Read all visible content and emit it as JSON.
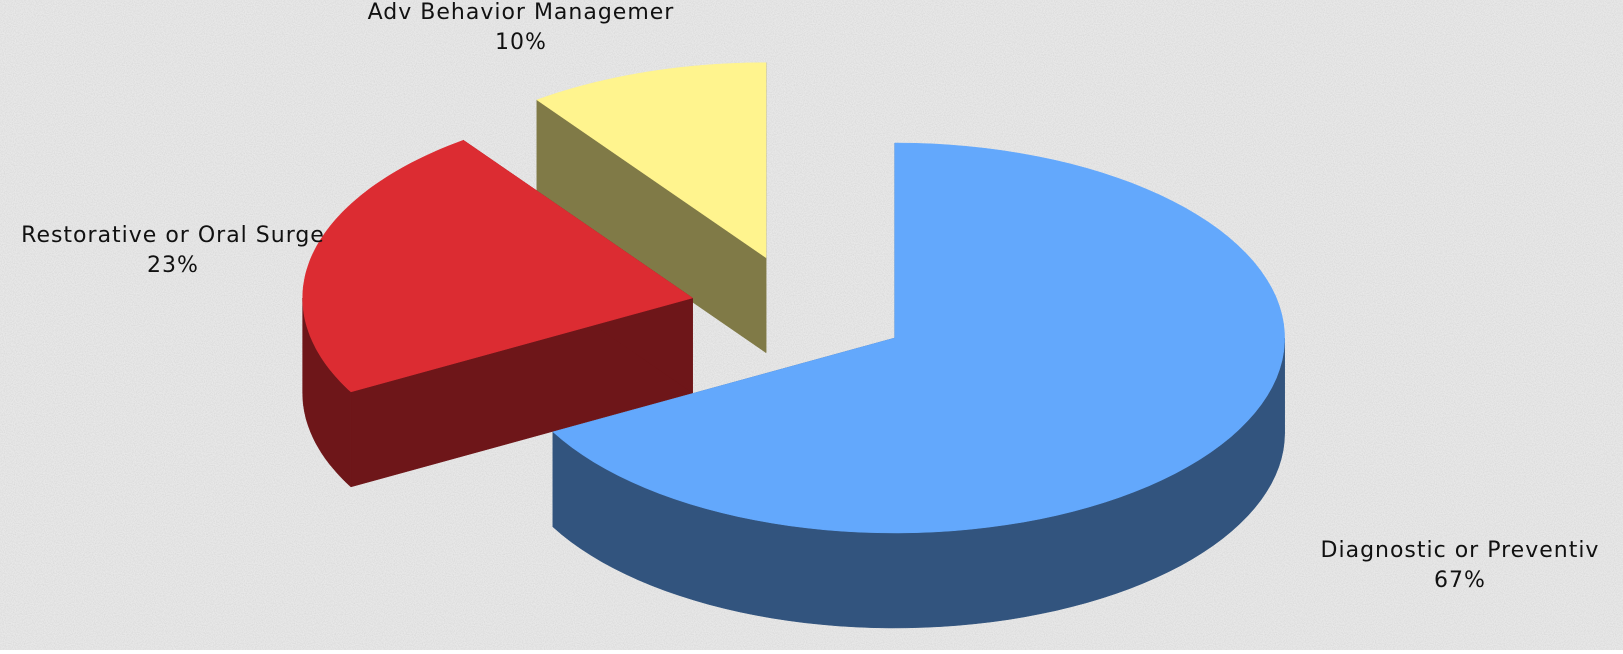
{
  "chart_data": {
    "type": "pie3d",
    "categories": [
      "Diagnostic or Preventiv",
      "Restorative or Oral Surge",
      "Adv Behavior Managemer"
    ],
    "values": [
      67,
      23,
      10
    ],
    "value_labels": [
      "67%",
      "23%",
      "10%"
    ],
    "colors": [
      "#63a8fc",
      "#dc2c32",
      "#fff48e"
    ]
  }
}
